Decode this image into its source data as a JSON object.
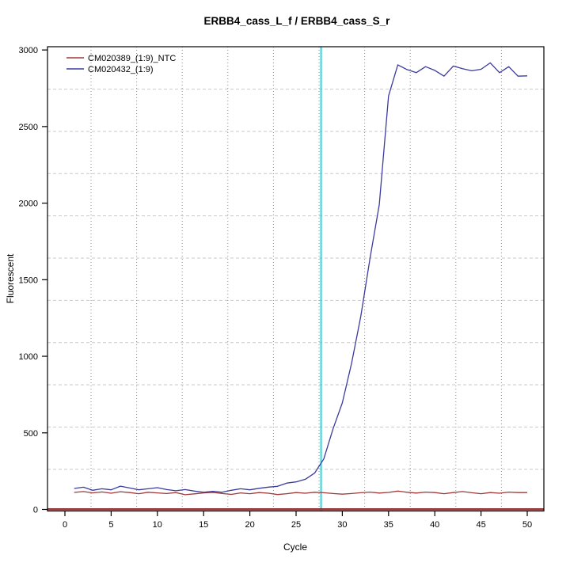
{
  "title": "ERBB4_cass_L_f / ERBB4_cass_S_r",
  "chart_data": {
    "type": "line",
    "title": "ERBB4_cass_L_f / ERBB4_cass_S_r",
    "xlabel": "Cycle",
    "ylabel": "Fluorescent",
    "xlim": [
      0,
      52
    ],
    "ylim": [
      0,
      3000
    ],
    "xticks": [
      0,
      5,
      10,
      15,
      20,
      25,
      30,
      35,
      40,
      45,
      50
    ],
    "yticks": [
      0,
      500,
      1000,
      1500,
      2000,
      2500,
      3000
    ],
    "grid": true,
    "legend_position": "top-left",
    "threshold_cycle_line": {
      "x": 27.7,
      "color": "#00dbe8"
    },
    "zero_reference_line": {
      "y": 0,
      "color": "#a33b3b"
    },
    "cycles": [
      1,
      2,
      3,
      4,
      5,
      6,
      7,
      8,
      9,
      10,
      11,
      12,
      13,
      14,
      15,
      16,
      17,
      18,
      19,
      20,
      21,
      22,
      23,
      24,
      25,
      26,
      27,
      28,
      29,
      30,
      31,
      32,
      33,
      34,
      35,
      36,
      37,
      38,
      39,
      40,
      41,
      42,
      43,
      44,
      45,
      46,
      47,
      48,
      49,
      50
    ],
    "series": [
      {
        "name": "CM020389_(1:9)_NTC",
        "color": "#9e3b3b",
        "values": [
          111,
          117,
          108,
          114,
          106,
          116,
          110,
          103,
          112,
          108,
          104,
          110,
          96,
          102,
          108,
          111,
          104,
          98,
          108,
          103,
          110,
          106,
          97,
          103,
          110,
          106,
          112,
          109,
          104,
          100,
          104,
          109,
          113,
          107,
          111,
          120,
          112,
          107,
          113,
          110,
          103,
          110,
          117,
          109,
          103,
          110,
          106,
          113,
          110,
          110
        ]
      },
      {
        "name": "CM020432_(1:9)",
        "color": "#3b3b9e",
        "values": [
          137,
          145,
          125,
          135,
          128,
          152,
          140,
          128,
          135,
          142,
          130,
          122,
          130,
          120,
          112,
          118,
          112,
          125,
          135,
          128,
          138,
          146,
          151,
          172,
          180,
          197,
          237,
          330,
          526,
          696,
          954,
          1263,
          1640,
          1990,
          2700,
          2903,
          2872,
          2852,
          2891,
          2867,
          2829,
          2895,
          2878,
          2864,
          2874,
          2916,
          2852,
          2891,
          2829,
          2831
        ]
      }
    ]
  }
}
